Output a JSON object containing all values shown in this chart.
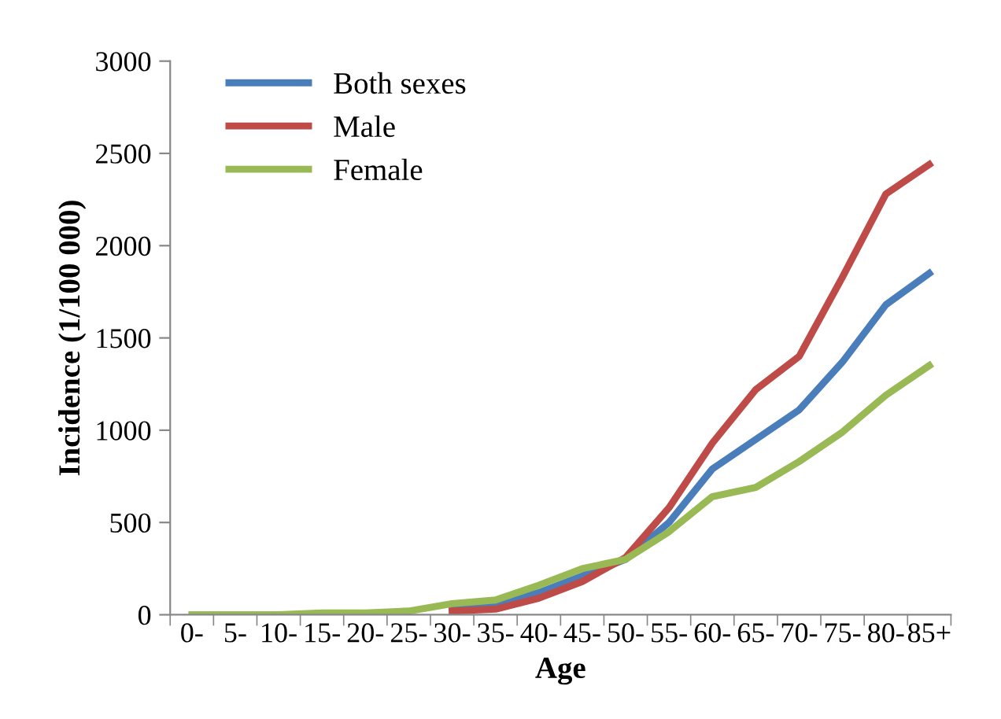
{
  "chart_data": {
    "type": "line",
    "xlabel": "Age",
    "ylabel": "Incidence (1/100 000)",
    "categories": [
      "0-",
      "5-",
      "10-",
      "15-",
      "20-",
      "25-",
      "30-",
      "35-",
      "40-",
      "45-",
      "50-",
      "55-",
      "60-",
      "65-",
      "70-",
      "75-",
      "80-",
      "85+"
    ],
    "series": [
      {
        "name": "Both sexes",
        "color": "#4a7ebb",
        "values": [
          null,
          null,
          null,
          null,
          null,
          null,
          40,
          60,
          120,
          210,
          300,
          500,
          790,
          950,
          1110,
          1370,
          1680,
          1850
        ]
      },
      {
        "name": "Male",
        "color": "#be4b48",
        "values": [
          null,
          null,
          null,
          null,
          null,
          null,
          20,
          30,
          90,
          180,
          310,
          580,
          930,
          1220,
          1400,
          1830,
          2280,
          2440
        ]
      },
      {
        "name": "Female",
        "color": "#98b954",
        "values": [
          0,
          0,
          0,
          10,
          10,
          20,
          60,
          80,
          160,
          250,
          300,
          450,
          640,
          690,
          830,
          990,
          1190,
          1350
        ]
      }
    ],
    "ylim": [
      0,
      3000
    ],
    "yticks": [
      0,
      500,
      1000,
      1500,
      2000,
      2500,
      3000
    ],
    "grid": false,
    "legend": "top left",
    "marker": "none",
    "line_style": "solid"
  }
}
